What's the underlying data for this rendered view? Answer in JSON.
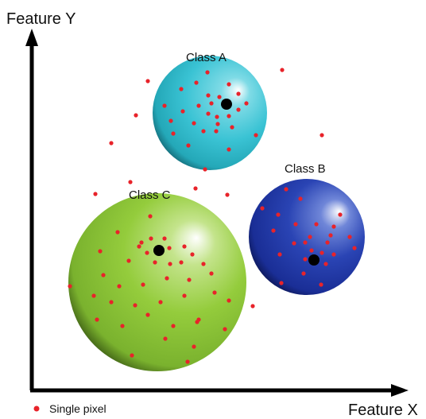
{
  "axes": {
    "y_label": "Feature Y",
    "x_label": "Feature X"
  },
  "clusters": [
    {
      "label": "Class A"
    },
    {
      "label": "Class B"
    },
    {
      "label": "Class C"
    }
  ],
  "legend": {
    "label": "Single pixel"
  }
}
